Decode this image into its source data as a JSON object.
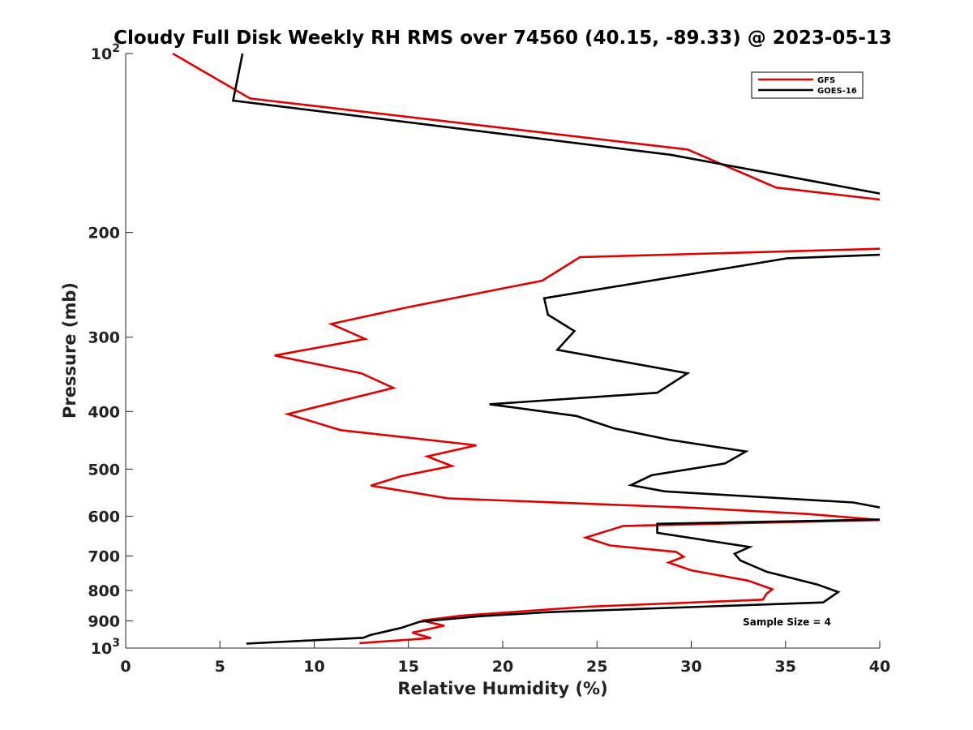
{
  "chart_data": {
    "type": "line",
    "title": "Cloudy Full Disk Weekly RH RMS over 74560 (40.15, -89.33) @ 2023-05-13",
    "xlabel": "Relative Humidity (%)",
    "ylabel": "Pressure (mb)",
    "xlim": [
      0,
      40
    ],
    "ylim": [
      100,
      1000
    ],
    "y_scale": "log",
    "y_reversed": true,
    "x_ticks": [
      "0",
      "5",
      "10",
      "15",
      "20",
      "25",
      "30",
      "35",
      "40"
    ],
    "y_ticks": [
      {
        "value": 100,
        "base": "10",
        "exp": "2"
      },
      {
        "value": 200,
        "label": "200"
      },
      {
        "value": 300,
        "label": "300"
      },
      {
        "value": 400,
        "label": "400"
      },
      {
        "value": 500,
        "label": "500"
      },
      {
        "value": 600,
        "label": "600"
      },
      {
        "value": 700,
        "label": "700"
      },
      {
        "value": 800,
        "label": "800"
      },
      {
        "value": 900,
        "label": "900"
      },
      {
        "value": 1000,
        "base": "10",
        "exp": "3"
      }
    ],
    "legend_position": "top-right",
    "grid": false,
    "annotation": "Sample Size = 4",
    "series": [
      {
        "name": "GFS",
        "color": "#e00000",
        "points": [
          [
            2.5,
            100
          ],
          [
            6.6,
            119
          ],
          [
            29.8,
            145
          ],
          [
            34.5,
            168
          ],
          [
            40,
            176
          ],
          [
            null,
            null
          ],
          [
            40,
            213
          ],
          [
            24.1,
            220
          ],
          [
            22.1,
            241
          ],
          [
            15.0,
            267
          ],
          [
            10.9,
            285
          ],
          [
            12.7,
            302
          ],
          [
            7.9,
            322
          ],
          [
            12.5,
            345
          ],
          [
            14.2,
            365
          ],
          [
            8.6,
            404
          ],
          [
            11.4,
            430
          ],
          [
            18.6,
            456
          ],
          [
            16.0,
            476
          ],
          [
            17.3,
            494
          ],
          [
            14.6,
            514
          ],
          [
            13.0,
            533
          ],
          [
            17.1,
            560
          ],
          [
            30.1,
            581
          ],
          [
            36.2,
            595
          ],
          [
            40,
            609
          ],
          [
            26.4,
            623
          ],
          [
            24.4,
            652
          ],
          [
            25.7,
            672
          ],
          [
            29.2,
            689
          ],
          [
            29.6,
            702
          ],
          [
            28.8,
            718
          ],
          [
            30.0,
            740
          ],
          [
            33.0,
            770
          ],
          [
            34.3,
            796
          ],
          [
            34.0,
            810
          ],
          [
            33.8,
            829
          ],
          [
            24.5,
            852
          ],
          [
            17.8,
            882
          ],
          [
            15.7,
            899
          ],
          [
            16.9,
            917
          ],
          [
            15.2,
            942
          ],
          [
            16.2,
            962
          ],
          [
            12.4,
            981
          ]
        ]
      },
      {
        "name": "GOES-16",
        "color": "#000000",
        "points": [
          [
            6.2,
            100
          ],
          [
            5.7,
            120
          ],
          [
            28.9,
            148
          ],
          [
            40,
            172
          ],
          [
            null,
            null
          ],
          [
            40,
            218
          ],
          [
            35.1,
            221
          ],
          [
            22.2,
            258
          ],
          [
            22.4,
            275
          ],
          [
            23.8,
            293
          ],
          [
            22.9,
            315
          ],
          [
            29.8,
            345
          ],
          [
            28.2,
            372
          ],
          [
            19.3,
            389
          ],
          [
            23.9,
            407
          ],
          [
            25.9,
            427
          ],
          [
            28.8,
            446
          ],
          [
            32.9,
            467
          ],
          [
            31.8,
            489
          ],
          [
            27.9,
            512
          ],
          [
            26.8,
            532
          ],
          [
            28.6,
            545
          ],
          [
            38.6,
            569
          ],
          [
            40,
            580
          ],
          [
            null,
            null
          ],
          [
            40,
            608
          ],
          [
            28.2,
            618
          ],
          [
            28.2,
            640
          ],
          [
            33.1,
            676
          ],
          [
            32.3,
            694
          ],
          [
            32.6,
            712
          ],
          [
            34.0,
            744
          ],
          [
            36.7,
            782
          ],
          [
            37.8,
            805
          ],
          [
            37.0,
            838
          ],
          [
            22.4,
            870
          ],
          [
            18.8,
            884
          ],
          [
            15.6,
            903
          ],
          [
            14.6,
            925
          ],
          [
            13.0,
            950
          ],
          [
            12.6,
            961
          ],
          [
            6.4,
            983
          ]
        ]
      }
    ]
  }
}
